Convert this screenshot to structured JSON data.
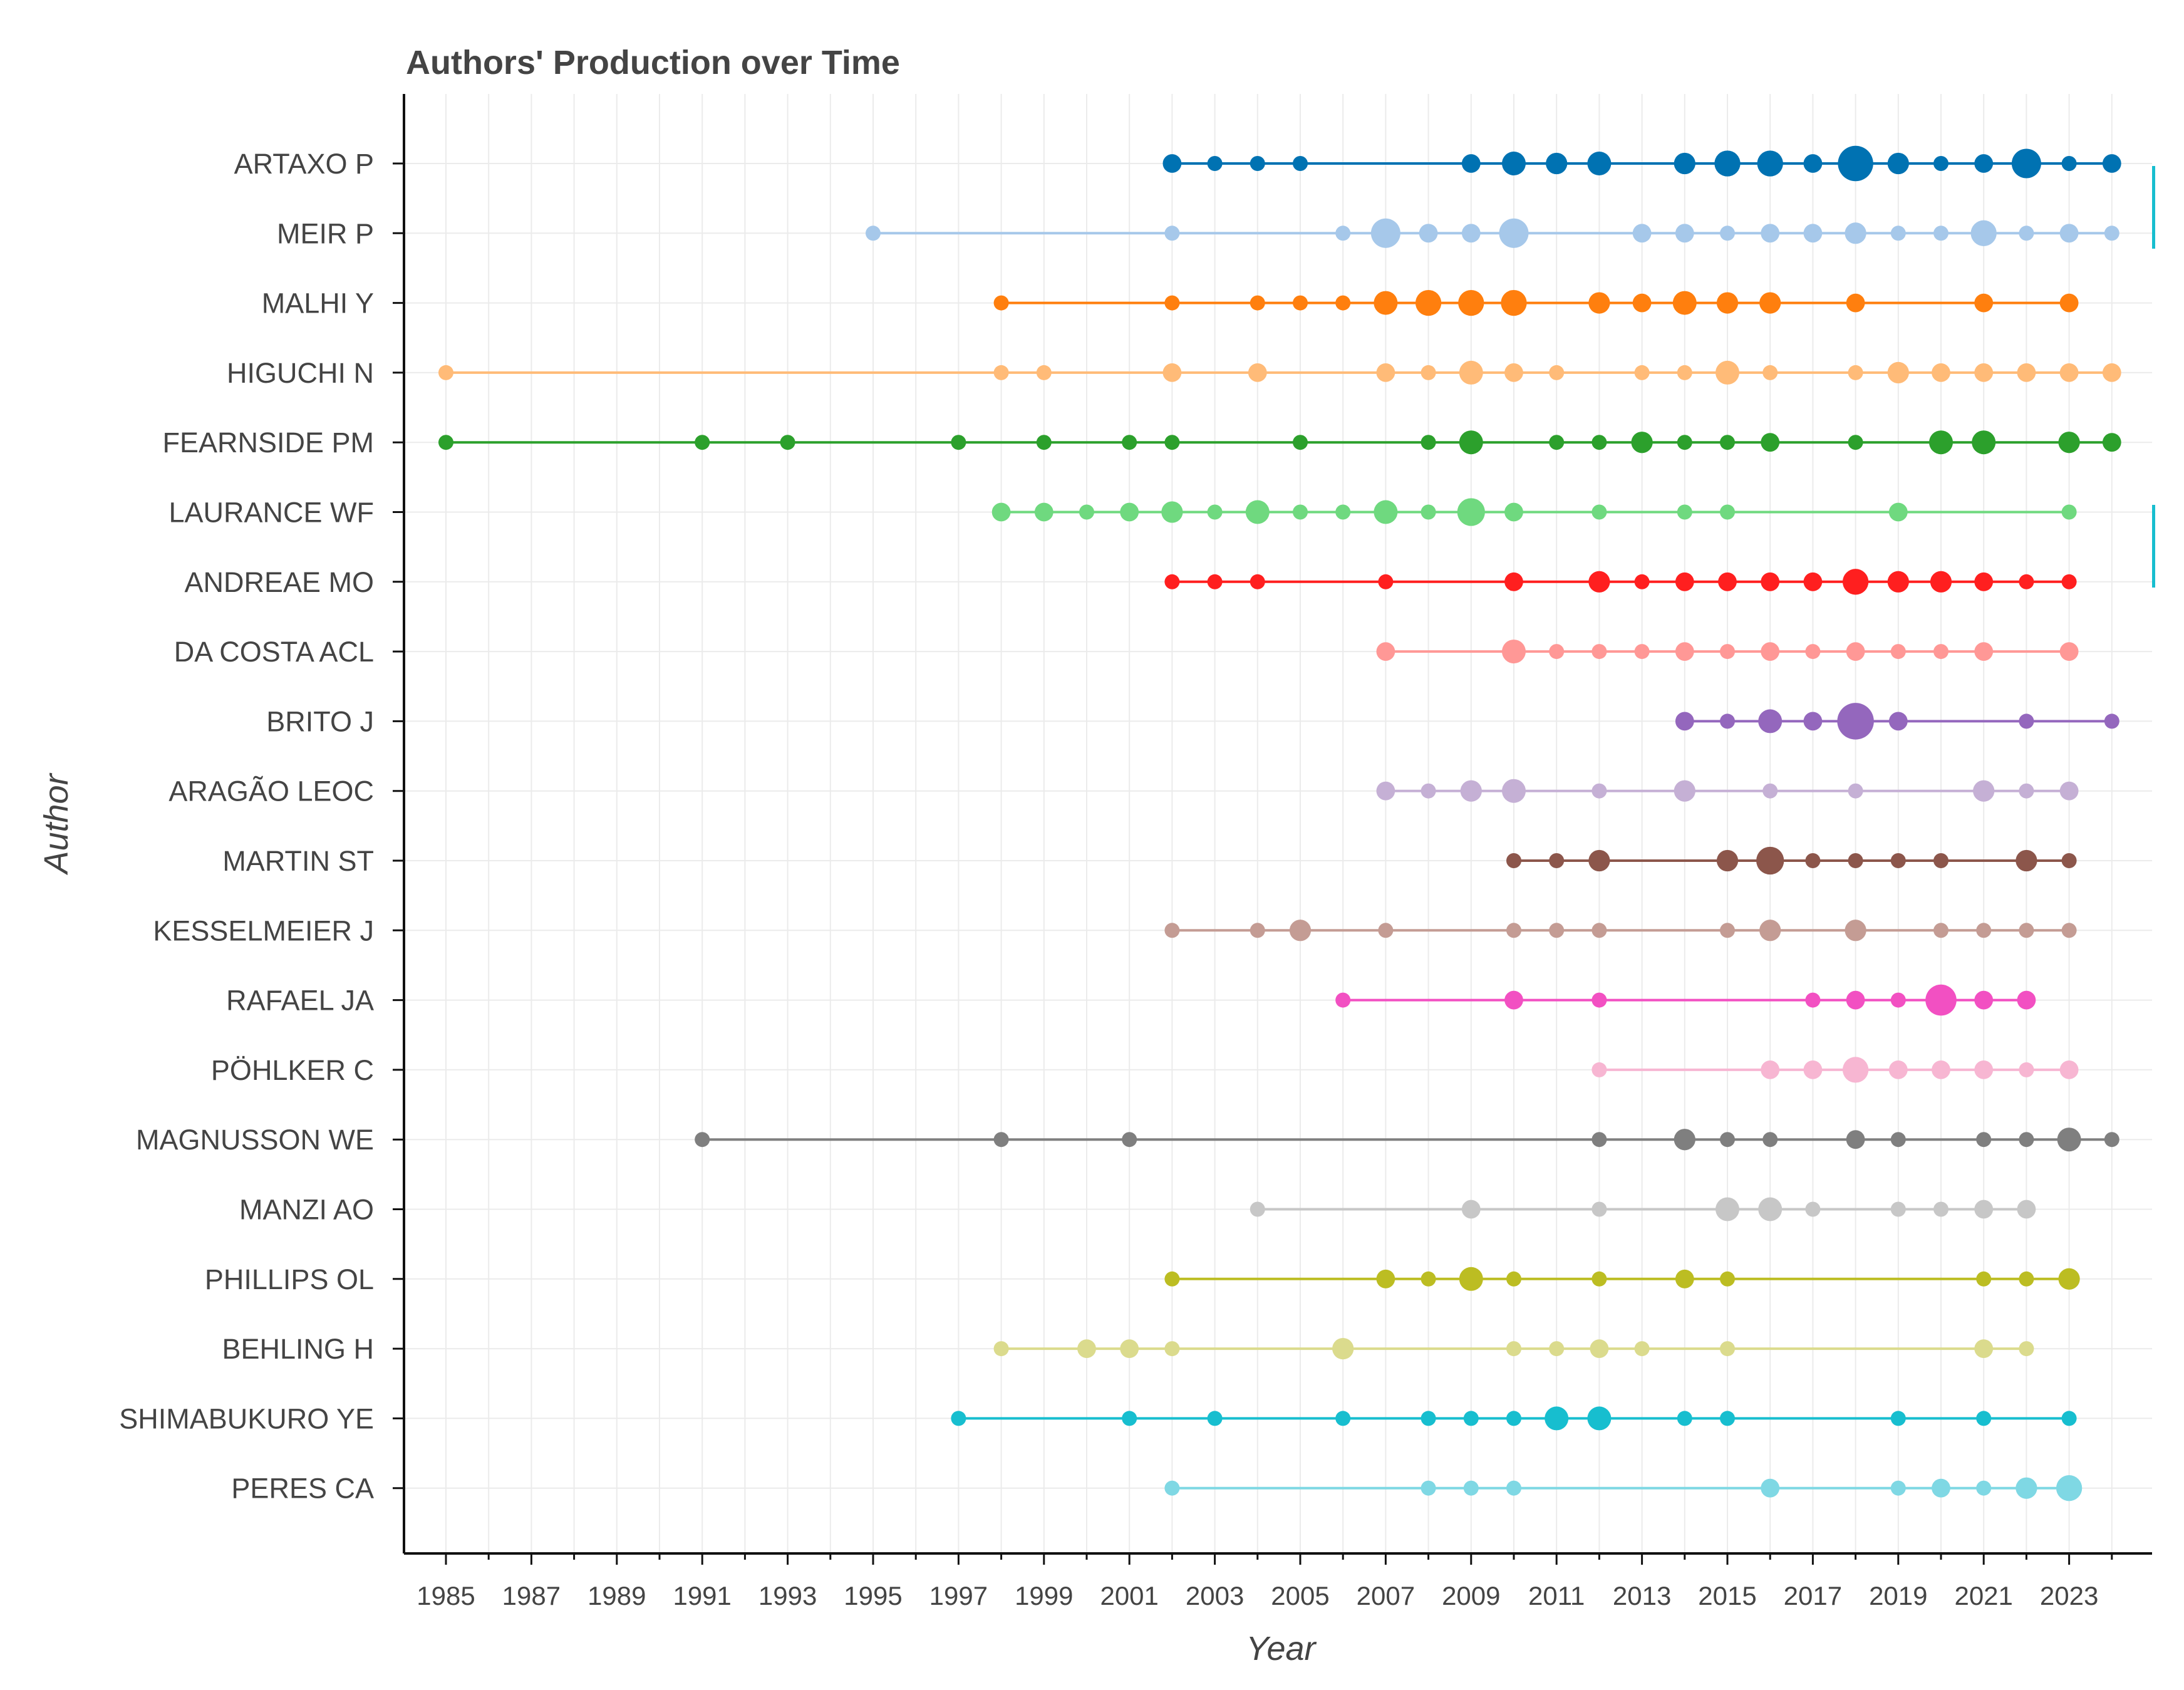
{
  "chart_data": {
    "type": "scatter",
    "title": "Authors' Production over Time",
    "xlabel": "Year",
    "ylabel": "Author",
    "xlim": [
      1984,
      2025
    ],
    "x_ticks": [
      "1985",
      "1987",
      "1989",
      "1991",
      "1993",
      "1995",
      "1997",
      "1999",
      "2001",
      "2003",
      "2005",
      "2007",
      "2009",
      "2011",
      "2013",
      "2015",
      "2017",
      "2019",
      "2021",
      "2023"
    ],
    "grid": true,
    "series": [
      {
        "name": "ARTAXO P",
        "color": "#0072B2",
        "points": [
          [
            2002,
            2
          ],
          [
            2003,
            1
          ],
          [
            2004,
            1
          ],
          [
            2005,
            1
          ],
          [
            2009,
            2
          ],
          [
            2010,
            4
          ],
          [
            2011,
            3
          ],
          [
            2012,
            4
          ],
          [
            2014,
            3
          ],
          [
            2015,
            5
          ],
          [
            2016,
            5
          ],
          [
            2017,
            2
          ],
          [
            2018,
            11
          ],
          [
            2019,
            3
          ],
          [
            2020,
            1
          ],
          [
            2021,
            2
          ],
          [
            2022,
            7
          ],
          [
            2023,
            1
          ],
          [
            2024,
            2
          ]
        ]
      },
      {
        "name": "MEIR P",
        "color": "#a6c8ea",
        "points": [
          [
            1995,
            1
          ],
          [
            2002,
            1
          ],
          [
            2006,
            1
          ],
          [
            2007,
            7
          ],
          [
            2008,
            2
          ],
          [
            2009,
            2
          ],
          [
            2010,
            7
          ],
          [
            2013,
            2
          ],
          [
            2014,
            2
          ],
          [
            2015,
            1
          ],
          [
            2016,
            2
          ],
          [
            2017,
            2
          ],
          [
            2018,
            3
          ],
          [
            2019,
            1
          ],
          [
            2020,
            1
          ],
          [
            2021,
            5
          ],
          [
            2022,
            1
          ],
          [
            2023,
            2
          ],
          [
            2024,
            1
          ]
        ]
      },
      {
        "name": "MALHI Y",
        "color": "#ff7f0e",
        "points": [
          [
            1998,
            1
          ],
          [
            2002,
            1
          ],
          [
            2004,
            1
          ],
          [
            2005,
            1
          ],
          [
            2006,
            1
          ],
          [
            2007,
            4
          ],
          [
            2008,
            5
          ],
          [
            2009,
            5
          ],
          [
            2010,
            5
          ],
          [
            2012,
            3
          ],
          [
            2013,
            2
          ],
          [
            2014,
            4
          ],
          [
            2015,
            3
          ],
          [
            2016,
            3
          ],
          [
            2018,
            2
          ],
          [
            2021,
            2
          ],
          [
            2023,
            2
          ]
        ]
      },
      {
        "name": "HIGUCHI N",
        "color": "#ffbb78",
        "points": [
          [
            1985,
            1
          ],
          [
            1998,
            1
          ],
          [
            1999,
            1
          ],
          [
            2002,
            2
          ],
          [
            2004,
            2
          ],
          [
            2007,
            2
          ],
          [
            2008,
            1
          ],
          [
            2009,
            4
          ],
          [
            2010,
            2
          ],
          [
            2011,
            1
          ],
          [
            2013,
            1
          ],
          [
            2014,
            1
          ],
          [
            2015,
            4
          ],
          [
            2016,
            1
          ],
          [
            2018,
            1
          ],
          [
            2019,
            3
          ],
          [
            2020,
            2
          ],
          [
            2021,
            2
          ],
          [
            2022,
            2
          ],
          [
            2023,
            2
          ],
          [
            2024,
            2
          ]
        ]
      },
      {
        "name": "FEARNSIDE PM",
        "color": "#2ca02c",
        "points": [
          [
            1985,
            1
          ],
          [
            1991,
            1
          ],
          [
            1993,
            1
          ],
          [
            1997,
            1
          ],
          [
            1999,
            1
          ],
          [
            2001,
            1
          ],
          [
            2002,
            1
          ],
          [
            2005,
            1
          ],
          [
            2008,
            1
          ],
          [
            2009,
            4
          ],
          [
            2011,
            1
          ],
          [
            2012,
            1
          ],
          [
            2013,
            3
          ],
          [
            2014,
            1
          ],
          [
            2015,
            1
          ],
          [
            2016,
            2
          ],
          [
            2018,
            1
          ],
          [
            2020,
            4
          ],
          [
            2021,
            4
          ],
          [
            2023,
            3
          ],
          [
            2024,
            2
          ]
        ]
      },
      {
        "name": "LAURANCE WF",
        "color": "#6fd97f",
        "points": [
          [
            1998,
            2
          ],
          [
            1999,
            2
          ],
          [
            2000,
            1
          ],
          [
            2001,
            2
          ],
          [
            2002,
            3
          ],
          [
            2003,
            1
          ],
          [
            2004,
            4
          ],
          [
            2005,
            1
          ],
          [
            2006,
            1
          ],
          [
            2007,
            4
          ],
          [
            2008,
            1
          ],
          [
            2009,
            6
          ],
          [
            2010,
            2
          ],
          [
            2012,
            1
          ],
          [
            2014,
            1
          ],
          [
            2015,
            1
          ],
          [
            2019,
            2
          ],
          [
            2023,
            1
          ]
        ]
      },
      {
        "name": "ANDREAE MO",
        "color": "#ff1f1f",
        "points": [
          [
            2002,
            1
          ],
          [
            2003,
            1
          ],
          [
            2004,
            1
          ],
          [
            2007,
            1
          ],
          [
            2010,
            2
          ],
          [
            2012,
            3
          ],
          [
            2013,
            1
          ],
          [
            2014,
            2
          ],
          [
            2015,
            2
          ],
          [
            2016,
            2
          ],
          [
            2017,
            2
          ],
          [
            2018,
            5
          ],
          [
            2019,
            3
          ],
          [
            2020,
            3
          ],
          [
            2021,
            2
          ],
          [
            2022,
            1
          ],
          [
            2023,
            1
          ]
        ]
      },
      {
        "name": "DA COSTA ACL",
        "color": "#ff9896",
        "points": [
          [
            2007,
            2
          ],
          [
            2010,
            4
          ],
          [
            2011,
            1
          ],
          [
            2012,
            1
          ],
          [
            2013,
            1
          ],
          [
            2014,
            2
          ],
          [
            2015,
            1
          ],
          [
            2016,
            2
          ],
          [
            2017,
            1
          ],
          [
            2018,
            2
          ],
          [
            2019,
            1
          ],
          [
            2020,
            1
          ],
          [
            2021,
            2
          ],
          [
            2023,
            2
          ]
        ]
      },
      {
        "name": "BRITO J",
        "color": "#9467bd",
        "points": [
          [
            2014,
            2
          ],
          [
            2015,
            1
          ],
          [
            2016,
            4
          ],
          [
            2017,
            2
          ],
          [
            2018,
            12
          ],
          [
            2019,
            2
          ],
          [
            2022,
            1
          ],
          [
            2024,
            1
          ]
        ]
      },
      {
        "name": "ARAGÃO LEOC",
        "color": "#c5b0d5",
        "points": [
          [
            2007,
            2
          ],
          [
            2008,
            1
          ],
          [
            2009,
            3
          ],
          [
            2010,
            4
          ],
          [
            2012,
            1
          ],
          [
            2014,
            3
          ],
          [
            2016,
            1
          ],
          [
            2018,
            1
          ],
          [
            2021,
            3
          ],
          [
            2022,
            1
          ],
          [
            2023,
            2
          ]
        ]
      },
      {
        "name": "MARTIN ST",
        "color": "#8c564b",
        "points": [
          [
            2010,
            1
          ],
          [
            2011,
            1
          ],
          [
            2012,
            3
          ],
          [
            2015,
            3
          ],
          [
            2016,
            6
          ],
          [
            2017,
            1
          ],
          [
            2018,
            1
          ],
          [
            2019,
            1
          ],
          [
            2020,
            1
          ],
          [
            2022,
            3
          ],
          [
            2023,
            1
          ]
        ]
      },
      {
        "name": "KESSELMEIER J",
        "color": "#c49c94",
        "points": [
          [
            2002,
            1
          ],
          [
            2004,
            1
          ],
          [
            2005,
            3
          ],
          [
            2007,
            1
          ],
          [
            2010,
            1
          ],
          [
            2011,
            1
          ],
          [
            2012,
            1
          ],
          [
            2015,
            1
          ],
          [
            2016,
            3
          ],
          [
            2018,
            3
          ],
          [
            2020,
            1
          ],
          [
            2021,
            1
          ],
          [
            2022,
            1
          ],
          [
            2023,
            1
          ]
        ]
      },
      {
        "name": "RAFAEL JA",
        "color": "#f250c2",
        "points": [
          [
            2006,
            1
          ],
          [
            2010,
            2
          ],
          [
            2012,
            1
          ],
          [
            2017,
            1
          ],
          [
            2018,
            2
          ],
          [
            2019,
            1
          ],
          [
            2020,
            8
          ],
          [
            2021,
            2
          ],
          [
            2022,
            2
          ]
        ]
      },
      {
        "name": "PÖHLKER C",
        "color": "#f7b6d2",
        "points": [
          [
            2012,
            1
          ],
          [
            2016,
            2
          ],
          [
            2017,
            2
          ],
          [
            2018,
            5
          ],
          [
            2019,
            2
          ],
          [
            2020,
            2
          ],
          [
            2021,
            2
          ],
          [
            2022,
            1
          ],
          [
            2023,
            2
          ]
        ]
      },
      {
        "name": "MAGNUSSON WE",
        "color": "#7f7f7f",
        "points": [
          [
            1991,
            1
          ],
          [
            1998,
            1
          ],
          [
            2001,
            1
          ],
          [
            2012,
            1
          ],
          [
            2014,
            3
          ],
          [
            2015,
            1
          ],
          [
            2016,
            1
          ],
          [
            2018,
            2
          ],
          [
            2019,
            1
          ],
          [
            2021,
            1
          ],
          [
            2022,
            1
          ],
          [
            2023,
            4
          ],
          [
            2024,
            1
          ]
        ]
      },
      {
        "name": "MANZI AO",
        "color": "#c7c7c7",
        "points": [
          [
            2004,
            1
          ],
          [
            2009,
            2
          ],
          [
            2012,
            1
          ],
          [
            2015,
            4
          ],
          [
            2016,
            4
          ],
          [
            2017,
            1
          ],
          [
            2019,
            1
          ],
          [
            2020,
            1
          ],
          [
            2021,
            2
          ],
          [
            2022,
            2
          ]
        ]
      },
      {
        "name": "PHILLIPS OL",
        "color": "#bcbd22",
        "points": [
          [
            2002,
            1
          ],
          [
            2007,
            2
          ],
          [
            2008,
            1
          ],
          [
            2009,
            4
          ],
          [
            2010,
            1
          ],
          [
            2012,
            1
          ],
          [
            2014,
            2
          ],
          [
            2015,
            1
          ],
          [
            2021,
            1
          ],
          [
            2022,
            1
          ],
          [
            2023,
            3
          ]
        ]
      },
      {
        "name": "BEHLING H",
        "color": "#dbdb8d",
        "points": [
          [
            1998,
            1
          ],
          [
            2000,
            2
          ],
          [
            2001,
            2
          ],
          [
            2002,
            1
          ],
          [
            2006,
            3
          ],
          [
            2010,
            1
          ],
          [
            2011,
            1
          ],
          [
            2012,
            2
          ],
          [
            2013,
            1
          ],
          [
            2015,
            1
          ],
          [
            2021,
            2
          ],
          [
            2022,
            1
          ]
        ]
      },
      {
        "name": "SHIMABUKURO YE",
        "color": "#17becf",
        "points": [
          [
            1997,
            1
          ],
          [
            2001,
            1
          ],
          [
            2003,
            1
          ],
          [
            2006,
            1
          ],
          [
            2008,
            1
          ],
          [
            2009,
            1
          ],
          [
            2010,
            1
          ],
          [
            2011,
            4
          ],
          [
            2012,
            4
          ],
          [
            2014,
            1
          ],
          [
            2015,
            1
          ],
          [
            2019,
            1
          ],
          [
            2021,
            1
          ],
          [
            2023,
            1
          ]
        ]
      },
      {
        "name": "PERES CA",
        "color": "#7fd8e4",
        "points": [
          [
            2002,
            1
          ],
          [
            2008,
            1
          ],
          [
            2009,
            1
          ],
          [
            2010,
            1
          ],
          [
            2016,
            2
          ],
          [
            2019,
            1
          ],
          [
            2020,
            2
          ],
          [
            2021,
            1
          ],
          [
            2022,
            3
          ],
          [
            2023,
            5
          ]
        ]
      }
    ]
  }
}
